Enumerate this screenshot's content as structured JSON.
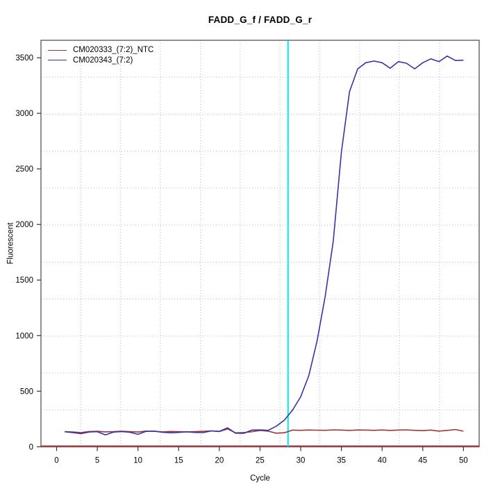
{
  "title": "FADD_G_f / FADD_G_r",
  "chart_data": {
    "type": "line",
    "title": "FADD_G_f / FADD_G_r",
    "xlabel": "Cycle",
    "ylabel": "Fluorescent",
    "xlim": [
      -1.92,
      51.93
    ],
    "ylim": [
      -1,
      3657
    ],
    "xticks": [
      0,
      5,
      10,
      15,
      20,
      25,
      30,
      35,
      40,
      45,
      50
    ],
    "yticks": [
      0,
      500,
      1000,
      1500,
      2000,
      2500,
      3000,
      3500
    ],
    "grid": {
      "nx": 11,
      "ny": 11,
      "style": "dotted",
      "color": "#b8b8b8",
      "aligned_to_ticks": false
    },
    "legend_position": "top-left",
    "threshold_line": {
      "x": 28.44,
      "color": "#00e8ea"
    },
    "zero_line": {
      "y": 0,
      "color": "#b04040"
    },
    "x": [
      1,
      2,
      3,
      4,
      5,
      6,
      7,
      8,
      9,
      10,
      11,
      12,
      13,
      14,
      15,
      16,
      17,
      18,
      19,
      20,
      21,
      22,
      23,
      24,
      25,
      26,
      27,
      28,
      29,
      30,
      31,
      32,
      33,
      34,
      35,
      36,
      37,
      38,
      39,
      40,
      41,
      42,
      43,
      44,
      45,
      46,
      47,
      48,
      49,
      50
    ],
    "series": [
      {
        "name": "CM020333_(7:2)_NTC",
        "color": "#a03434",
        "values": [
          136,
          133,
          128,
          137,
          139,
          134,
          136,
          140,
          136,
          133,
          141,
          139,
          134,
          138,
          136,
          133,
          136,
          139,
          143,
          137,
          160,
          125,
          128,
          135,
          147,
          140,
          122,
          126,
          150,
          148,
          151,
          149,
          148,
          152,
          150,
          147,
          151,
          150,
          148,
          151,
          147,
          150,
          152,
          148,
          145,
          150,
          141,
          147,
          155,
          140
        ]
      },
      {
        "name": "CM020343_(7:2)",
        "color": "#3434a4",
        "values": [
          135,
          128,
          118,
          133,
          136,
          107,
          132,
          137,
          130,
          112,
          139,
          141,
          131,
          126,
          129,
          135,
          129,
          127,
          142,
          139,
          170,
          122,
          121,
          150,
          152,
          148,
          185,
          240,
          330,
          450,
          640,
          950,
          1350,
          1850,
          2650,
          3195,
          3400,
          3455,
          3470,
          3455,
          3405,
          3465,
          3450,
          3400,
          3455,
          3490,
          3465,
          3515,
          3475,
          3478
        ]
      }
    ]
  },
  "style_colors": {
    "plot_border": "#555555",
    "tick": "#333333",
    "text": "#000000",
    "background": "#ffffff"
  }
}
